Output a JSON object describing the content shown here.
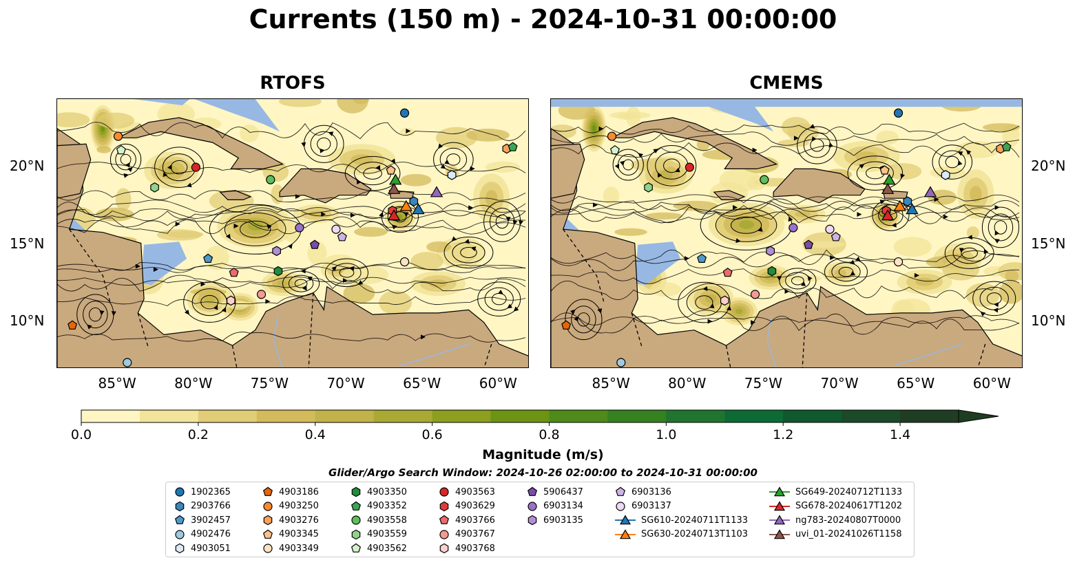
{
  "title": "Currents (150 m) - 2024-10-31 00:00:00",
  "panels": [
    {
      "title": "RTOFS"
    },
    {
      "title": "CMEMS"
    }
  ],
  "axes": {
    "lon_labels": [
      "85°W",
      "80°W",
      "75°W",
      "70°W",
      "65°W",
      "60°W"
    ],
    "lon_values": [
      -85,
      -80,
      -75,
      -70,
      -65,
      -60
    ],
    "lat_labels": [
      "20°N",
      "15°N",
      "10°N"
    ],
    "lat_values": [
      20,
      15,
      10
    ],
    "lon_range": [
      -89,
      -58
    ],
    "lat_range": [
      7,
      24.4
    ]
  },
  "colorbar": {
    "label": "Magnitude (m/s)",
    "ticks": [
      "0.0",
      "0.2",
      "0.4",
      "0.6",
      "0.8",
      "1.0",
      "1.2",
      "1.4"
    ],
    "tick_values": [
      0,
      0.2,
      0.4,
      0.6,
      0.8,
      1.0,
      1.2,
      1.4
    ],
    "range": [
      0,
      1.5
    ],
    "colors": [
      "#fff6c4",
      "#f2e49a",
      "#e2cd77",
      "#d3bb5c",
      "#c2b24a",
      "#a9a934",
      "#8e9e1e",
      "#6c9412",
      "#4f8a1b",
      "#35801f",
      "#1f7530",
      "#0e6a34",
      "#10582e",
      "#1b4a28",
      "#1f3d22"
    ],
    "extend": "max"
  },
  "search_window": "Glider/Argo Search Window: 2024-10-26 02:00:00 to 2024-10-31 00:00:00",
  "map_colors": {
    "land": "#c9a97e",
    "water_shallow": "#98b8e4",
    "coast": "#000000"
  },
  "legend": {
    "items": [
      {
        "label": "1902365",
        "marker": "circle",
        "color": "#1f77b4"
      },
      {
        "label": "2903766",
        "marker": "hexagon",
        "color": "#3a86bd"
      },
      {
        "label": "3902457",
        "marker": "pentagon",
        "color": "#4e9acb"
      },
      {
        "label": "4902476",
        "marker": "circle",
        "color": "#9ecae1"
      },
      {
        "label": "4903051",
        "marker": "hexagon",
        "color": "#dbeaf6"
      },
      {
        "label": "4903186",
        "marker": "pentagon",
        "color": "#e6650a"
      },
      {
        "label": "4903250",
        "marker": "circle",
        "color": "#f88a30"
      },
      {
        "label": "4903276",
        "marker": "hexagon",
        "color": "#fba25a"
      },
      {
        "label": "4903345",
        "marker": "pentagon",
        "color": "#fdc18a"
      },
      {
        "label": "4903349",
        "marker": "circle",
        "color": "#fee3c3"
      },
      {
        "label": "4903350",
        "marker": "hexagon",
        "color": "#218c3c"
      },
      {
        "label": "4903352",
        "marker": "pentagon",
        "color": "#3aa655"
      },
      {
        "label": "4903558",
        "marker": "circle",
        "color": "#5ebf5b"
      },
      {
        "label": "4903559",
        "marker": "hexagon",
        "color": "#8fd48c"
      },
      {
        "label": "4903562",
        "marker": "pentagon",
        "color": "#d6f2cc"
      },
      {
        "label": "4903563",
        "marker": "circle",
        "color": "#d62728"
      },
      {
        "label": "4903629",
        "marker": "hexagon",
        "color": "#e23b3b"
      },
      {
        "label": "4903766",
        "marker": "pentagon",
        "color": "#ee6a6a"
      },
      {
        "label": "4903767",
        "marker": "circle",
        "color": "#f39a94"
      },
      {
        "label": "4903768",
        "marker": "hexagon",
        "color": "#fcd0cc"
      },
      {
        "label": "5906437",
        "marker": "pentagon",
        "color": "#7b4ca8"
      },
      {
        "label": "6903134",
        "marker": "circle",
        "color": "#9a72c7"
      },
      {
        "label": "6903135",
        "marker": "hexagon",
        "color": "#b28ed6"
      },
      {
        "label": "6903136",
        "marker": "pentagon",
        "color": "#cdb4e6"
      },
      {
        "label": "6903137",
        "marker": "circle",
        "color": "#eed9f5"
      },
      {
        "label": "SG610-20240711T1133",
        "marker": "triangle",
        "color": "#1f77b4"
      },
      {
        "label": "SG630-20240713T1103",
        "marker": "triangle",
        "color": "#ff7f0e"
      },
      {
        "label": "SG649-20240712T1133",
        "marker": "triangle",
        "color": "#2ca02c"
      },
      {
        "label": "SG678-20240617T1202",
        "marker": "triangle",
        "color": "#d62728"
      },
      {
        "label": "ng783-20240807T0000",
        "marker": "triangle",
        "color": "#9467bd"
      },
      {
        "label": "uvi_01-20241026T1158",
        "marker": "triangle",
        "color": "#8c564b"
      }
    ]
  },
  "positions": [
    {
      "id": "1902365",
      "lon": -66.2,
      "lat": 23.5
    },
    {
      "id": "2903766",
      "lon": -65.6,
      "lat": 17.8
    },
    {
      "id": "3902457",
      "lon": -79.1,
      "lat": 14.1
    },
    {
      "id": "4902476",
      "lon": -84.4,
      "lat": 7.4
    },
    {
      "id": "4903051",
      "lon": -63.1,
      "lat": 19.5
    },
    {
      "id": "4903186",
      "lon": -88.0,
      "lat": 9.8
    },
    {
      "id": "4903250",
      "lon": -85.0,
      "lat": 22.0
    },
    {
      "id": "4903276",
      "lon": -59.5,
      "lat": 21.2
    },
    {
      "id": "4903345",
      "lon": -67.1,
      "lat": 19.8
    },
    {
      "id": "4903349",
      "lon": -66.2,
      "lat": 13.9
    },
    {
      "id": "4903350",
      "lon": -74.5,
      "lat": 13.3
    },
    {
      "id": "4903352",
      "lon": -59.1,
      "lat": 21.3
    },
    {
      "id": "4903558",
      "lon": -75.0,
      "lat": 19.2
    },
    {
      "id": "4903559",
      "lon": -82.6,
      "lat": 18.7
    },
    {
      "id": "4903562",
      "lon": -84.8,
      "lat": 21.1
    },
    {
      "id": "4903563",
      "lon": -79.9,
      "lat": 20.0
    },
    {
      "id": "4903629",
      "lon": -67.0,
      "lat": 17.2
    },
    {
      "id": "4903766",
      "lon": -77.4,
      "lat": 13.2
    },
    {
      "id": "4903767",
      "lon": -75.6,
      "lat": 11.8
    },
    {
      "id": "4903768",
      "lon": -77.6,
      "lat": 11.4
    },
    {
      "id": "5906437",
      "lon": -72.1,
      "lat": 15.0
    },
    {
      "id": "6903134",
      "lon": -73.1,
      "lat": 16.1
    },
    {
      "id": "6903135",
      "lon": -74.6,
      "lat": 14.6
    },
    {
      "id": "6903136",
      "lon": -70.3,
      "lat": 15.5
    },
    {
      "id": "6903137",
      "lon": -70.7,
      "lat": 16.0
    },
    {
      "id": "SG610-20240711T1133",
      "lon": -65.3,
      "lat": 17.3
    },
    {
      "id": "SG630-20240713T1103",
      "lon": -66.1,
      "lat": 17.5
    },
    {
      "id": "SG649-20240712T1133",
      "lon": -66.8,
      "lat": 19.2
    },
    {
      "id": "SG678-20240617T1202",
      "lon": -66.9,
      "lat": 16.9
    },
    {
      "id": "ng783-20240807T0000",
      "lon": -64.1,
      "lat": 18.4
    },
    {
      "id": "uvi_01-20241026T1158",
      "lon": -66.9,
      "lat": 18.6
    }
  ]
}
